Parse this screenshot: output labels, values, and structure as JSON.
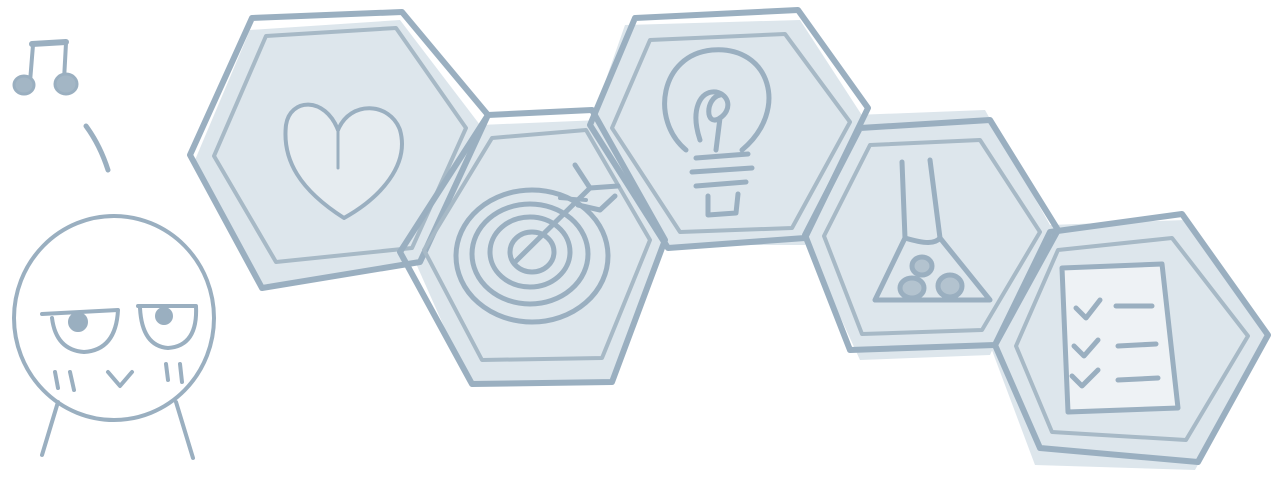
{
  "colors": {
    "background": "#ffffff",
    "ink": "#9aafc0",
    "ink_dark": "#8ea6b8",
    "shadow": "#dde6ec",
    "fill": "#e6ecf0"
  },
  "character": {
    "icon": "doodle-character",
    "note_icon": "music-note-icon"
  },
  "hexagons": [
    {
      "icon": "heart-icon"
    },
    {
      "icon": "target-icon"
    },
    {
      "icon": "lightbulb-icon"
    },
    {
      "icon": "flask-icon"
    },
    {
      "icon": "checklist-icon"
    }
  ]
}
